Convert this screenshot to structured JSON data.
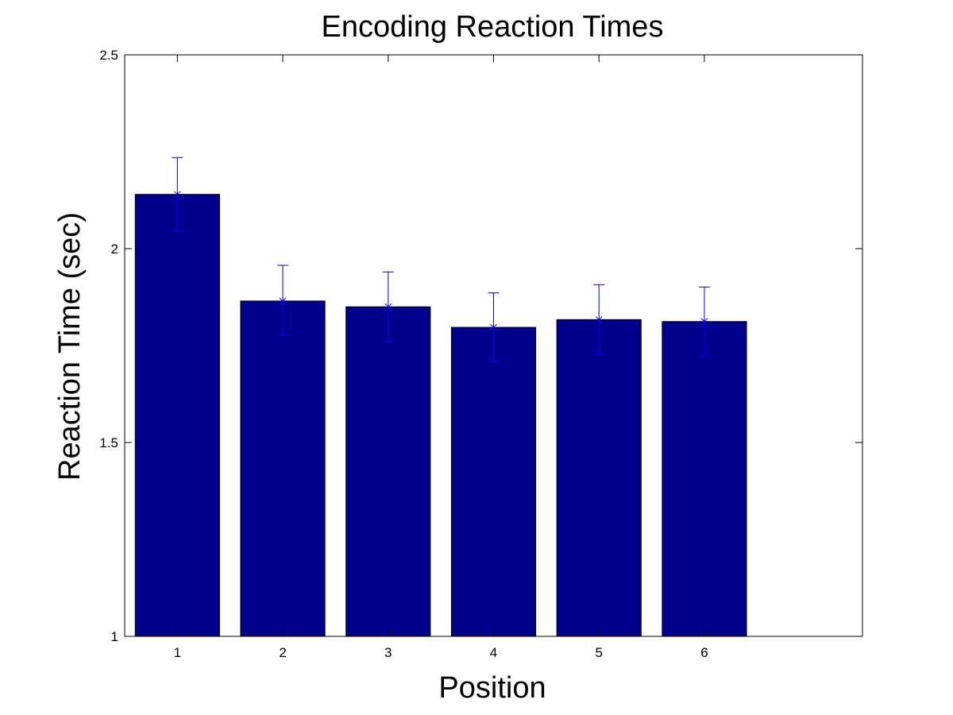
{
  "chart_data": {
    "type": "bar",
    "title": "Encoding Reaction Times",
    "xlabel": "Position",
    "ylabel": "Reaction Time (sec)",
    "categories": [
      "1",
      "2",
      "3",
      "4",
      "5",
      "6"
    ],
    "values": [
      2.14,
      1.865,
      1.85,
      1.797,
      1.817,
      1.812
    ],
    "error_lower": [
      2.045,
      1.777,
      1.76,
      1.708,
      1.727,
      1.723
    ],
    "error_upper": [
      2.235,
      1.957,
      1.94,
      1.886,
      1.907,
      1.901
    ],
    "ylim": [
      1,
      2.5
    ],
    "yticks": [
      1,
      1.5,
      2,
      2.5
    ],
    "yticklabels": [
      "1",
      "1.5",
      "2",
      "2.5"
    ],
    "xlim": [
      0.5,
      7.5
    ],
    "grid": false,
    "colors": {
      "bar": "#00008c",
      "error_bar": "#0000ff",
      "axes": "#000000",
      "background": "#ffffff"
    }
  }
}
